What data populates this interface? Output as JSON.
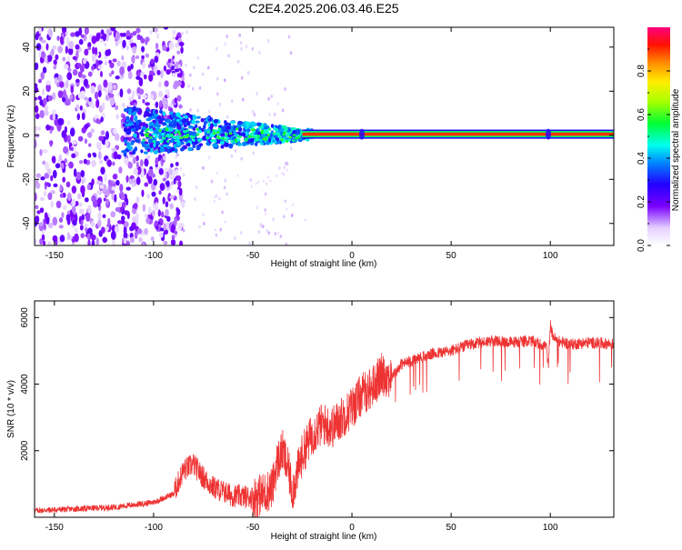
{
  "title": "C2E4.2025.206.03.46.E25",
  "colors": {
    "snr_line": "#ee3333",
    "signal_band": "#ff3300",
    "noise": "#7722ee"
  },
  "chart_data": [
    {
      "type": "heatmap",
      "xlabel": "Height of straight line (km)",
      "ylabel": "Frequency (Hz)",
      "xlim": [
        -160,
        132
      ],
      "ylim": [
        -50,
        49
      ],
      "xticks": [
        -150,
        -100,
        -50,
        0,
        50,
        100
      ],
      "xtick_labels": [
        "-150",
        "-100",
        "-50",
        "0",
        "50",
        "100"
      ],
      "yticks": [
        -40,
        -20,
        0,
        20,
        40
      ],
      "ytick_labels": [
        "-40",
        "-20",
        "0",
        "20",
        "40"
      ],
      "colorbar": {
        "label": "Normalized spectral amplitude",
        "range": [
          0,
          1
        ],
        "ticks": [
          0.0,
          0.2,
          0.4,
          0.6,
          0.8
        ],
        "tick_labels": [
          "0.0",
          "0.2",
          "0.4",
          "0.6",
          "0.8"
        ]
      },
      "signal_band": {
        "freq_hz": 0.5,
        "start_height_km": -25,
        "end_height_km": 132
      },
      "grid": false
    },
    {
      "type": "line",
      "xlabel": "Height of straight line (km)",
      "ylabel": "SNR (10 * v/v)",
      "xlim": [
        -160,
        132
      ],
      "ylim": [
        0,
        6500
      ],
      "xticks": [
        -150,
        -100,
        -50,
        0,
        50,
        100
      ],
      "xtick_labels": [
        "-150",
        "-100",
        "-50",
        "0",
        "50",
        "100"
      ],
      "yticks": [
        2000,
        4000,
        6000
      ],
      "ytick_labels": [
        "2000",
        "4000",
        "6000"
      ],
      "x": [
        -160,
        -140,
        -120,
        -100,
        -90,
        -85,
        -80,
        -75,
        -70,
        -60,
        -50,
        -45,
        -40,
        -38,
        -35,
        -32,
        -30,
        -25,
        -20,
        -15,
        -10,
        -5,
        0,
        5,
        10,
        15,
        20,
        25,
        30,
        40,
        50,
        60,
        70,
        80,
        90,
        95,
        98,
        99,
        100,
        101,
        103,
        110,
        120,
        132
      ],
      "y": [
        200,
        250,
        300,
        450,
        700,
        1400,
        1600,
        1200,
        900,
        650,
        600,
        700,
        900,
        1600,
        2000,
        1400,
        800,
        1900,
        2500,
        2800,
        2700,
        3000,
        3300,
        3700,
        3900,
        4300,
        4200,
        4600,
        4700,
        4900,
        5000,
        5200,
        5300,
        5250,
        5300,
        5200,
        5150,
        4500,
        5800,
        5500,
        5300,
        5200,
        5250,
        5200
      ],
      "grid": false
    }
  ]
}
